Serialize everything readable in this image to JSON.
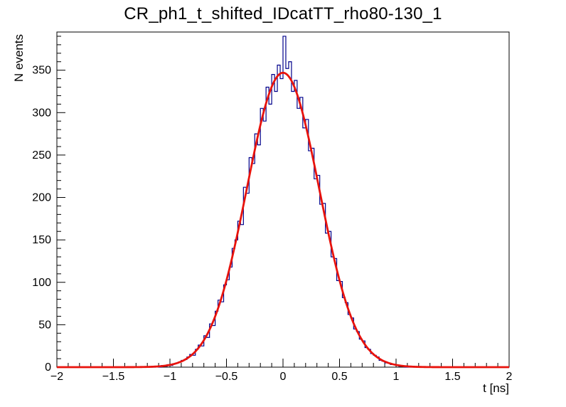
{
  "page": {
    "background": "#ffffff"
  },
  "chart_data": {
    "type": "histogram",
    "title": "CR_ph1_t_shifted_IDcatTT_rho80-130_1",
    "xlabel": "t [ns]",
    "ylabel": "N events",
    "xlim": [
      -2,
      2
    ],
    "ylim": [
      0,
      395
    ],
    "grid": false,
    "legend": null,
    "x_minor_step": 0.1,
    "x_major_step": 0.5,
    "y_minor_step": 10,
    "y_major_step": 50,
    "x_ticks": [
      {
        "v": -2,
        "t": "−2"
      },
      {
        "v": -1.5,
        "t": "−1.5"
      },
      {
        "v": -1,
        "t": "−1"
      },
      {
        "v": -0.5,
        "t": "−0.5"
      },
      {
        "v": 0,
        "t": "0"
      },
      {
        "v": 0.5,
        "t": "0.5"
      },
      {
        "v": 1,
        "t": "1"
      },
      {
        "v": 1.5,
        "t": "1.5"
      },
      {
        "v": 2,
        "t": "2"
      }
    ],
    "y_ticks": [
      {
        "v": 0,
        "t": "0"
      },
      {
        "v": 50,
        "t": "50"
      },
      {
        "v": 100,
        "t": "100"
      },
      {
        "v": 150,
        "t": "150"
      },
      {
        "v": 200,
        "t": "200"
      },
      {
        "v": 250,
        "t": "250"
      },
      {
        "v": 300,
        "t": "300"
      },
      {
        "v": 350,
        "t": "350"
      }
    ],
    "histogram": {
      "color": "#00008b",
      "line_width": 1.2,
      "bin_start": -2,
      "bin_width": 0.025,
      "bins": [
        0,
        0,
        0,
        0,
        0,
        0,
        0,
        0,
        0,
        0,
        0,
        0,
        0,
        0,
        0,
        0,
        0,
        0,
        0,
        0,
        0,
        0,
        0,
        0,
        0,
        0,
        0,
        0,
        0,
        0,
        0,
        0,
        0,
        0,
        0,
        1,
        0,
        2,
        1,
        3,
        2,
        4,
        5,
        6,
        8,
        9,
        12,
        15,
        14,
        21,
        26,
        25,
        37,
        35,
        51,
        49,
        66,
        79,
        77,
        97,
        103,
        118,
        140,
        150,
        172,
        168,
        212,
        205,
        247,
        240,
        275,
        262,
        305,
        290,
        330,
        310,
        345,
        325,
        356,
        340,
        390,
        352,
        360,
        325,
        338,
        305,
        318,
        282,
        292,
        255,
        258,
        222,
        226,
        192,
        193,
        158,
        160,
        130,
        128,
        102,
        101,
        82,
        76,
        62,
        58,
        45,
        42,
        33,
        31,
        23,
        21,
        16,
        14,
        12,
        8,
        7,
        5,
        5,
        3,
        3,
        2,
        1,
        1,
        0,
        0,
        0,
        0,
        0,
        0,
        0,
        0,
        0,
        0,
        0,
        0,
        0,
        0,
        0,
        0,
        0,
        0,
        0,
        0,
        0,
        0,
        0,
        0,
        0,
        0,
        0,
        0,
        0,
        0,
        0,
        0,
        0,
        0,
        0,
        0,
        0
      ]
    },
    "fit": {
      "shape": "gaussian",
      "amplitude": 347,
      "mean": 0,
      "sigma": 0.32,
      "range": [
        -2,
        2
      ],
      "color": "#e8130c",
      "line_width": 2.8
    }
  }
}
